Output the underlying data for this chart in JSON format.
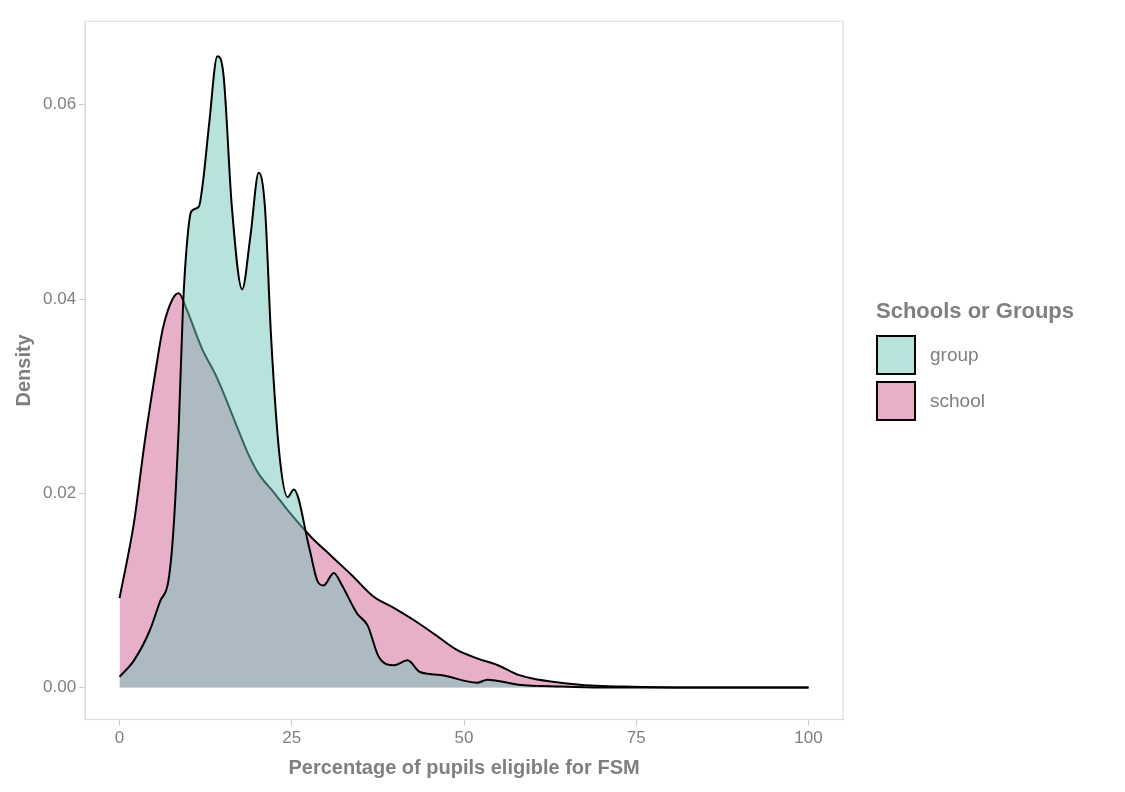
{
  "chart_data": {
    "type": "area",
    "xlabel": "Percentage of pupils eligible for FSM",
    "ylabel": "Density",
    "legend_title": "Schools or Groups",
    "legend": "right",
    "grid": false,
    "xlim": [
      -5,
      105
    ],
    "ylim": [
      -0.0033,
      0.0686
    ],
    "xticks": [
      0,
      25,
      50,
      75,
      100
    ],
    "yticks": [
      {
        "value": 0,
        "label": "0.00"
      },
      {
        "value": 0.02,
        "label": "0.02"
      },
      {
        "value": 0.04,
        "label": "0.04"
      },
      {
        "value": 0.06,
        "label": "0.06"
      }
    ],
    "series": [
      {
        "name": "group",
        "color": "#b8e2dc",
        "x": [
          0,
          2.1,
          4.4,
          5.9,
          7.1,
          7.8,
          8.6,
          9.2,
          9.7,
          10.4,
          11.5,
          12.1,
          13,
          14.2,
          15.1,
          16.3,
          17.8,
          19,
          20.2,
          21.1,
          22,
          23.2,
          24.4,
          25.3,
          27.5,
          28.7,
          29.6,
          31.1,
          32.3,
          34.5,
          36,
          37.6,
          39.8,
          41.8,
          43.6,
          46.6,
          51.9,
          53.4,
          57.9,
          64,
          70,
          85,
          100
        ],
        "values": [
          0.0011,
          0.0028,
          0.0059,
          0.0089,
          0.011,
          0.016,
          0.027,
          0.039,
          0.045,
          0.049,
          0.0495,
          0.052,
          0.058,
          0.065,
          0.063,
          0.0495,
          0.041,
          0.0465,
          0.053,
          0.0495,
          0.036,
          0.024,
          0.0196,
          0.0204,
          0.0145,
          0.011,
          0.0105,
          0.0118,
          0.0105,
          0.0076,
          0.0064,
          0.0032,
          0.0023,
          0.0028,
          0.0016,
          0.0013,
          0.0005,
          0.0008,
          0.0003,
          0.0001,
          0,
          0,
          0
        ]
      },
      {
        "name": "school",
        "color": "#e8afc8",
        "x": [
          0,
          2.1,
          3.6,
          5.1,
          6.3,
          7.7,
          8.6,
          9.7,
          11.9,
          14.2,
          16.4,
          18.7,
          20.2,
          22.5,
          24.7,
          27.8,
          30.8,
          33.8,
          36.8,
          39.8,
          42.8,
          45.9,
          48.9,
          51.9,
          54.9,
          57.9,
          60.9,
          64,
          68.5,
          73,
          82,
          100
        ],
        "values": [
          0.0092,
          0.017,
          0.025,
          0.032,
          0.037,
          0.04,
          0.0406,
          0.039,
          0.035,
          0.0318,
          0.028,
          0.024,
          0.022,
          0.02,
          0.018,
          0.0155,
          0.0135,
          0.0115,
          0.0094,
          0.0082,
          0.0069,
          0.0054,
          0.0039,
          0.003,
          0.0023,
          0.0013,
          0.0008,
          0.0005,
          0.0002,
          0.0001,
          0,
          0
        ]
      }
    ]
  }
}
